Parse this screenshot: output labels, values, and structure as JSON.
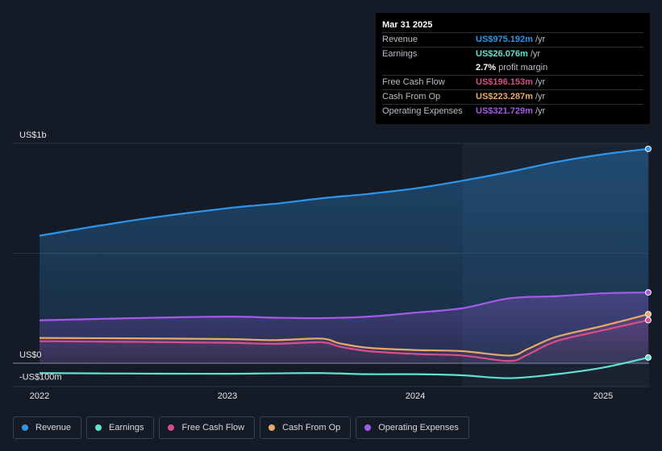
{
  "tooltip": {
    "date": "Mar 31 2025",
    "rows": [
      {
        "name": "Revenue",
        "value": "US$975.192m",
        "unit": "/yr",
        "color": "#2f95ea"
      },
      {
        "name": "Earnings",
        "value": "US$26.076m",
        "unit": "/yr",
        "color": "#5fe3d0"
      },
      {
        "name": "",
        "value": "2.7%",
        "unit": "profit margin",
        "color": "#ffffff"
      },
      {
        "name": "Free Cash Flow",
        "value": "US$196.153m",
        "unit": "/yr",
        "color": "#d64f8a"
      },
      {
        "name": "Cash From Op",
        "value": "US$223.287m",
        "unit": "/yr",
        "color": "#e8a96b"
      },
      {
        "name": "Operating Expenses",
        "value": "US$321.729m",
        "unit": "/yr",
        "color": "#a45ae8"
      }
    ]
  },
  "chart_data": {
    "type": "area",
    "y_axis_labels": [
      {
        "label": "US$1b",
        "value": 1000
      },
      {
        "label": "US$0",
        "value": 0
      },
      {
        "label": "-US$100m",
        "value": -100
      }
    ],
    "ylim": [
      -100,
      1000
    ],
    "xlim": [
      2021.93,
      2025.25
    ],
    "x_ticks": [
      {
        "label": "2022",
        "value": 2022
      },
      {
        "label": "2023",
        "value": 2023
      },
      {
        "label": "2024",
        "value": 2024
      },
      {
        "label": "2025",
        "value": 2025
      }
    ],
    "forecast_start": 2024.25,
    "series": [
      {
        "name": "Revenue",
        "color": "#2f95ea",
        "x": [
          2022.0,
          2022.5,
          2023.0,
          2023.25,
          2023.5,
          2023.75,
          2024.0,
          2024.25,
          2024.5,
          2024.75,
          2025.0,
          2025.24
        ],
        "y": [
          580,
          650,
          705,
          725,
          750,
          770,
          795,
          830,
          870,
          915,
          950,
          975
        ]
      },
      {
        "name": "Earnings",
        "color": "#5fe3d0",
        "x": [
          2022.0,
          2022.5,
          2023.0,
          2023.25,
          2023.5,
          2023.75,
          2024.0,
          2024.25,
          2024.5,
          2024.75,
          2025.0,
          2025.24
        ],
        "y": [
          -45,
          -47,
          -48,
          -46,
          -45,
          -50,
          -50,
          -55,
          -68,
          -50,
          -20,
          26
        ]
      },
      {
        "name": "Free Cash Flow",
        "color": "#d64f8a",
        "x": [
          2022.0,
          2022.5,
          2023.0,
          2023.25,
          2023.5,
          2023.6,
          2023.75,
          2024.0,
          2024.25,
          2024.5,
          2024.6,
          2024.75,
          2025.0,
          2025.24
        ],
        "y": [
          100,
          97,
          93,
          88,
          95,
          75,
          55,
          42,
          35,
          10,
          40,
          100,
          150,
          196
        ]
      },
      {
        "name": "Cash From Op",
        "color": "#e8a96b",
        "x": [
          2022.0,
          2022.5,
          2023.0,
          2023.25,
          2023.5,
          2023.6,
          2023.75,
          2024.0,
          2024.25,
          2024.5,
          2024.6,
          2024.75,
          2025.0,
          2025.24
        ],
        "y": [
          115,
          113,
          110,
          105,
          112,
          90,
          70,
          60,
          55,
          35,
          65,
          120,
          170,
          223
        ]
      },
      {
        "name": "Operating Expenses",
        "color": "#a45ae8",
        "x": [
          2022.0,
          2022.5,
          2023.0,
          2023.25,
          2023.5,
          2023.75,
          2024.0,
          2024.25,
          2024.5,
          2024.75,
          2025.0,
          2025.24
        ],
        "y": [
          195,
          205,
          212,
          207,
          205,
          212,
          230,
          250,
          295,
          305,
          318,
          322
        ]
      }
    ]
  },
  "legend": [
    {
      "name": "Revenue",
      "color": "#2f95ea"
    },
    {
      "name": "Earnings",
      "color": "#5fe3d0"
    },
    {
      "name": "Free Cash Flow",
      "color": "#d64f8a"
    },
    {
      "name": "Cash From Op",
      "color": "#e8a96b"
    },
    {
      "name": "Operating Expenses",
      "color": "#a45ae8"
    }
  ]
}
